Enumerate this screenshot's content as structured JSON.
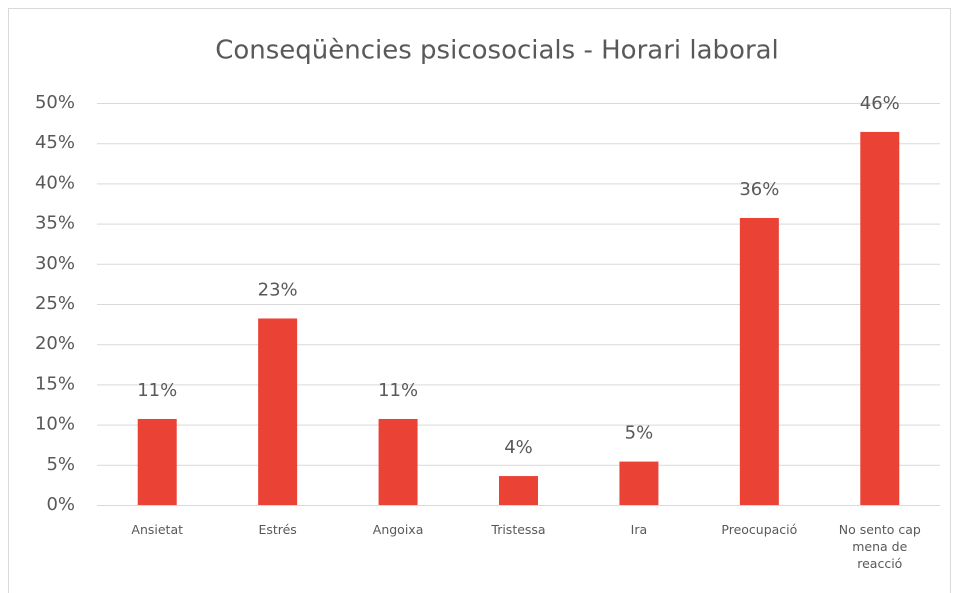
{
  "chart_data": {
    "type": "bar",
    "title": "Conseqüències psicosocials - Horari laboral",
    "categories": [
      "Ansietat",
      "Estrés",
      "Angoixa",
      "Tristessa",
      "Ira",
      "Preocupació",
      "No sento cap mena de reacció"
    ],
    "values": [
      10.7,
      23.2,
      10.7,
      3.6,
      5.4,
      35.7,
      46.4
    ],
    "value_labels": [
      "11%",
      "23%",
      "11%",
      "4%",
      "5%",
      "36%",
      "46%"
    ],
    "color": "#ea4335",
    "ylim": [
      0,
      50
    ],
    "yticks": [
      {
        "value": 0,
        "label": "0%"
      },
      {
        "value": 5,
        "label": "5%"
      },
      {
        "value": 10,
        "label": "10%"
      },
      {
        "value": 15,
        "label": "15%"
      },
      {
        "value": 20,
        "label": "20%"
      },
      {
        "value": 25,
        "label": "25%"
      },
      {
        "value": 30,
        "label": "30%"
      },
      {
        "value": 35,
        "label": "35%"
      },
      {
        "value": 40,
        "label": "40%"
      },
      {
        "value": 45,
        "label": "45%"
      },
      {
        "value": 50,
        "label": "50%"
      }
    ],
    "grid": true
  }
}
